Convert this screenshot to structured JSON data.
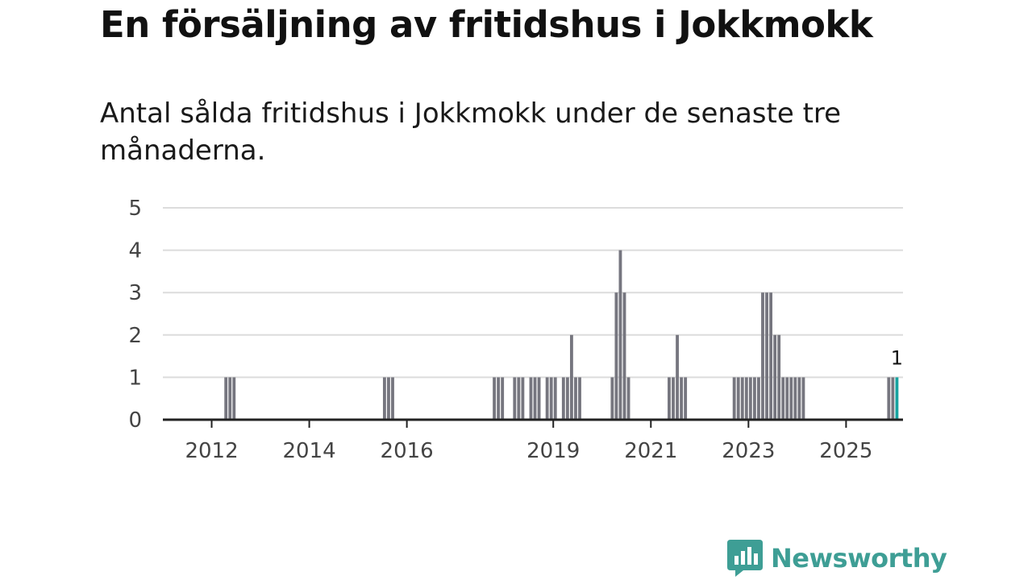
{
  "header": {
    "title": "En försäljning av fritidshus i Jokkmokk",
    "subtitle": "Antal sålda fritidshus i Jokkmokk under de senaste tre månaderna."
  },
  "colors": {
    "bar": "#76767f",
    "highlight": "#17a3a0",
    "grid": "#dcdcdc",
    "axis": "#222222",
    "brand": "#3e9e95"
  },
  "branding": {
    "name": "Newsworthy",
    "icon": "newsworthy-logo-icon"
  },
  "chart_data": {
    "type": "bar",
    "title": "En försäljning av fritidshus i Jokkmokk",
    "subtitle": "Antal sålda fritidshus i Jokkmokk under de senaste tre månaderna.",
    "xlabel": "",
    "ylabel": "",
    "x_unit": "month",
    "x_start": "2011-01",
    "x_end": "2026-02",
    "ylim": [
      0,
      5
    ],
    "yticks": [
      0,
      1,
      2,
      3,
      4,
      5
    ],
    "xticks": [
      "2012",
      "2014",
      "2016",
      "2019",
      "2021",
      "2023",
      "2025"
    ],
    "grid": true,
    "series": [
      {
        "name": "Antal sålda fritidshus",
        "points": [
          {
            "x": "2012-04",
            "y": 1
          },
          {
            "x": "2012-05",
            "y": 1
          },
          {
            "x": "2012-06",
            "y": 1
          },
          {
            "x": "2015-07",
            "y": 1
          },
          {
            "x": "2015-08",
            "y": 1
          },
          {
            "x": "2015-09",
            "y": 1
          },
          {
            "x": "2017-10",
            "y": 1
          },
          {
            "x": "2017-11",
            "y": 1
          },
          {
            "x": "2017-12",
            "y": 1
          },
          {
            "x": "2018-03",
            "y": 1
          },
          {
            "x": "2018-04",
            "y": 1
          },
          {
            "x": "2018-05",
            "y": 1
          },
          {
            "x": "2018-07",
            "y": 1
          },
          {
            "x": "2018-08",
            "y": 1
          },
          {
            "x": "2018-09",
            "y": 1
          },
          {
            "x": "2018-11",
            "y": 1
          },
          {
            "x": "2018-12",
            "y": 1
          },
          {
            "x": "2019-01",
            "y": 1
          },
          {
            "x": "2019-03",
            "y": 1
          },
          {
            "x": "2019-04",
            "y": 1
          },
          {
            "x": "2019-05",
            "y": 2
          },
          {
            "x": "2019-06",
            "y": 1
          },
          {
            "x": "2019-07",
            "y": 1
          },
          {
            "x": "2020-03",
            "y": 1
          },
          {
            "x": "2020-04",
            "y": 3
          },
          {
            "x": "2020-05",
            "y": 4
          },
          {
            "x": "2020-06",
            "y": 3
          },
          {
            "x": "2020-07",
            "y": 1
          },
          {
            "x": "2021-05",
            "y": 1
          },
          {
            "x": "2021-06",
            "y": 1
          },
          {
            "x": "2021-07",
            "y": 2
          },
          {
            "x": "2021-08",
            "y": 1
          },
          {
            "x": "2021-09",
            "y": 1
          },
          {
            "x": "2022-09",
            "y": 1
          },
          {
            "x": "2022-10",
            "y": 1
          },
          {
            "x": "2022-11",
            "y": 1
          },
          {
            "x": "2022-12",
            "y": 1
          },
          {
            "x": "2023-01",
            "y": 1
          },
          {
            "x": "2023-02",
            "y": 1
          },
          {
            "x": "2023-03",
            "y": 1
          },
          {
            "x": "2023-04",
            "y": 3
          },
          {
            "x": "2023-05",
            "y": 3
          },
          {
            "x": "2023-06",
            "y": 3
          },
          {
            "x": "2023-07",
            "y": 2
          },
          {
            "x": "2023-08",
            "y": 2
          },
          {
            "x": "2023-09",
            "y": 1
          },
          {
            "x": "2023-10",
            "y": 1
          },
          {
            "x": "2023-11",
            "y": 1
          },
          {
            "x": "2023-12",
            "y": 1
          },
          {
            "x": "2024-01",
            "y": 1
          },
          {
            "x": "2024-02",
            "y": 1
          },
          {
            "x": "2025-11",
            "y": 1
          },
          {
            "x": "2025-12",
            "y": 1
          },
          {
            "x": "2026-01",
            "y": 1,
            "highlight": true
          }
        ]
      }
    ],
    "annotations": [
      {
        "x": "2026-01",
        "y": 1,
        "text": "1"
      }
    ]
  }
}
